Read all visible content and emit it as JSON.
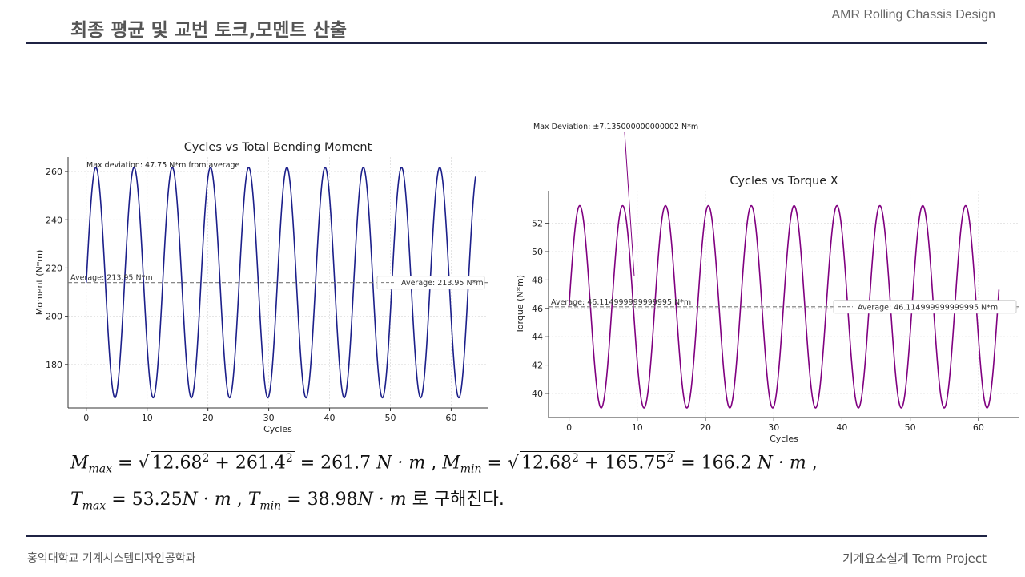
{
  "header": {
    "title": "최종 평균 및 교번 토크,모멘트 산출",
    "brand": "AMR Rolling Chassis Design"
  },
  "footer": {
    "left": "홍익대학교 기계시스템디자인공학과",
    "right": "기계요소설계  Term Project"
  },
  "chart_data": [
    {
      "type": "line",
      "title": "Cycles vs Total Bending Moment",
      "xlabel": "Cycles",
      "ylabel": "Moment (N*m)",
      "xlim": [
        -3,
        66
      ],
      "ylim": [
        162,
        266
      ],
      "xticks": [
        0,
        10,
        20,
        30,
        40,
        50,
        60
      ],
      "yticks": [
        180,
        200,
        220,
        240,
        260
      ],
      "grid": true,
      "line_color": "#1c1f8a",
      "series": [
        {
          "name": "",
          "function": "sine",
          "mean": 213.95,
          "amplitude": 47.75,
          "period": 6.283,
          "x_start": 0,
          "x_end": 64
        }
      ],
      "average_line": {
        "value": 213.95,
        "label": "Average: 213.95 N*m"
      },
      "legend": {
        "position": "center-right",
        "entries": [
          "Average: 213.95 N*m"
        ]
      },
      "annotation": "Max deviation: 47.75 N*m from average"
    },
    {
      "type": "line",
      "title": "Cycles vs Torque X",
      "xlabel": "Cycles",
      "ylabel": "Torque (N*m)",
      "xlim": [
        -3,
        66
      ],
      "ylim": [
        38.3,
        54.3
      ],
      "xticks": [
        0,
        10,
        20,
        30,
        40,
        50,
        60
      ],
      "yticks": [
        40,
        42,
        44,
        46,
        48,
        50,
        52
      ],
      "grid": true,
      "line_color": "#800080",
      "series": [
        {
          "name": "",
          "function": "sine",
          "mean": 46.115,
          "amplitude": 7.135,
          "period": 6.283,
          "x_start": 0,
          "x_end": 63
        }
      ],
      "average_line": {
        "value": 46.115,
        "label": "Average: 46.114999999999995 N*m"
      },
      "legend": {
        "position": "center-right",
        "entries": [
          "Average: 46.114999999999995 N*m"
        ]
      },
      "annotation": "Max Deviation: ±7.135000000000002 N*m"
    }
  ],
  "equations": {
    "line1": {
      "m_max_lhs": "M",
      "m_max_sub": "max",
      "m_max_a": "12.68",
      "m_max_b": "261.4",
      "m_max_result": "261.7",
      "m_min_lhs": "M",
      "m_min_sub": "min",
      "m_min_a": "12.68",
      "m_min_b": "165.75",
      "m_min_result": "166.2",
      "unit": "N · m"
    },
    "line2": {
      "t_max_lhs": "T",
      "t_max_sub": "max",
      "t_max_value": "53.25",
      "t_min_lhs": "T",
      "t_min_sub": "min",
      "t_min_value": "38.98",
      "unit": "N · m",
      "suffix": "로 구해진다."
    }
  }
}
